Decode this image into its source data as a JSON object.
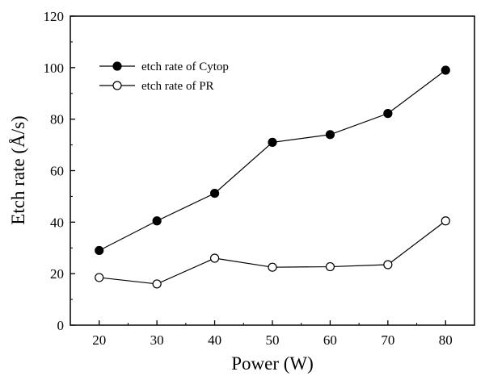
{
  "chart_data": {
    "type": "line",
    "title": "",
    "xlabel": "Power (W)",
    "ylabel": "Etch rate (Å/s)",
    "x": [
      20,
      30,
      40,
      50,
      60,
      70,
      80
    ],
    "xlim": [
      15,
      85
    ],
    "ylim": [
      0,
      120
    ],
    "xticks": [
      20,
      30,
      40,
      50,
      60,
      70,
      80
    ],
    "yticks": [
      0,
      20,
      40,
      60,
      80,
      100,
      120
    ],
    "grid": false,
    "legend_position": "top-left",
    "series": [
      {
        "name": "etch rate of Cytop",
        "marker": "filled-circle",
        "color": "#000000",
        "values": [
          29,
          40.5,
          51.2,
          71,
          74,
          82.2,
          99
        ]
      },
      {
        "name": "etch rate of PR",
        "marker": "open-circle",
        "color": "#000000",
        "values": [
          18.5,
          16,
          26,
          22.5,
          22.7,
          23.5,
          40.5
        ]
      }
    ]
  }
}
